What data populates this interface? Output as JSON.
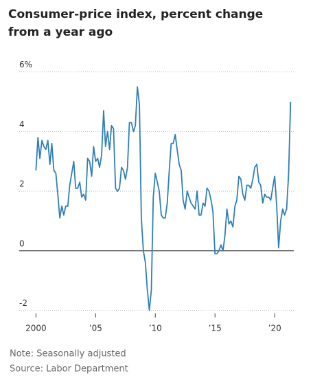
{
  "chart_data": {
    "type": "line",
    "title": "Consumer-price index, percent change from a year ago",
    "note": "Note: Seasonally adjusted",
    "source": "Source: Labor Department",
    "color": "#2f7fb8",
    "x": [
      2000,
      2000.17,
      2000.33,
      2000.5,
      2000.67,
      2000.83,
      2001,
      2001.17,
      2001.33,
      2001.5,
      2001.67,
      2001.83,
      2002,
      2002.17,
      2002.33,
      2002.5,
      2002.67,
      2002.83,
      2003,
      2003.17,
      2003.33,
      2003.5,
      2003.67,
      2003.83,
      2004,
      2004.17,
      2004.33,
      2004.5,
      2004.67,
      2004.83,
      2005,
      2005.17,
      2005.33,
      2005.5,
      2005.67,
      2005.83,
      2006,
      2006.17,
      2006.33,
      2006.5,
      2006.67,
      2006.83,
      2007,
      2007.17,
      2007.33,
      2007.5,
      2007.67,
      2007.83,
      2008,
      2008.17,
      2008.33,
      2008.5,
      2008.67,
      2008.83,
      2009,
      2009.17,
      2009.33,
      2009.5,
      2009.67,
      2009.83,
      2010,
      2010.17,
      2010.33,
      2010.5,
      2010.67,
      2010.83,
      2011,
      2011.17,
      2011.33,
      2011.5,
      2011.67,
      2011.83,
      2012,
      2012.17,
      2012.33,
      2012.5,
      2012.67,
      2012.83,
      2013,
      2013.17,
      2013.33,
      2013.5,
      2013.67,
      2013.83,
      2014,
      2014.17,
      2014.33,
      2014.5,
      2014.67,
      2014.83,
      2015,
      2015.17,
      2015.33,
      2015.5,
      2015.67,
      2015.83,
      2016,
      2016.17,
      2016.33,
      2016.5,
      2016.67,
      2016.83,
      2017,
      2017.17,
      2017.33,
      2017.5,
      2017.67,
      2017.83,
      2018,
      2018.17,
      2018.33,
      2018.5,
      2018.67,
      2018.83,
      2019,
      2019.17,
      2019.33,
      2019.5,
      2019.67,
      2019.83,
      2020,
      2020.17,
      2020.33,
      2020.5,
      2020.67,
      2020.83,
      2021,
      2021.17,
      2021.33
    ],
    "values": [
      2.7,
      3.8,
      3.1,
      3.7,
      3.5,
      3.4,
      3.7,
      2.9,
      3.6,
      2.7,
      2.6,
      1.9,
      1.1,
      1.5,
      1.2,
      1.5,
      1.5,
      2.2,
      2.6,
      3.0,
      2.1,
      2.1,
      2.3,
      1.8,
      1.9,
      1.7,
      3.1,
      3.0,
      2.5,
      3.5,
      3.0,
      3.1,
      2.8,
      3.2,
      4.7,
      3.5,
      4.0,
      3.4,
      4.2,
      4.1,
      2.1,
      2.0,
      2.1,
      2.8,
      2.7,
      2.4,
      2.8,
      4.3,
      4.3,
      4.0,
      4.2,
      5.5,
      4.9,
      1.1,
      0.0,
      -0.4,
      -1.3,
      -2.0,
      -1.3,
      1.8,
      2.6,
      2.3,
      2.0,
      1.2,
      1.1,
      1.1,
      1.6,
      2.7,
      3.6,
      3.6,
      3.9,
      3.4,
      2.9,
      2.7,
      1.7,
      1.4,
      2.0,
      1.8,
      1.6,
      1.5,
      1.4,
      2.0,
      1.2,
      1.2,
      1.6,
      1.5,
      2.1,
      2.0,
      1.7,
      1.3,
      -0.1,
      -0.1,
      0.0,
      0.2,
      0.0,
      0.5,
      1.4,
      0.9,
      1.0,
      0.8,
      1.5,
      1.7,
      2.5,
      2.4,
      1.9,
      1.7,
      2.2,
      2.2,
      2.1,
      2.4,
      2.8,
      2.9,
      2.3,
      2.2,
      1.6,
      1.9,
      1.8,
      1.8,
      1.7,
      2.1,
      2.5,
      1.5,
      0.1,
      1.0,
      1.4,
      1.2,
      1.4,
      2.6,
      5.0
    ],
    "xlim": [
      1998.6,
      2021.6
    ],
    "xticks": [
      {
        "value": 2000,
        "label": "2000"
      },
      {
        "value": 2005,
        "label": "’05"
      },
      {
        "value": 2010,
        "label": "’10"
      },
      {
        "value": 2015,
        "label": "’15"
      },
      {
        "value": 2020,
        "label": "’20"
      }
    ],
    "ylim": [
      -2.1,
      6.2
    ],
    "yticks": [
      {
        "value": 6,
        "label": "6%"
      },
      4,
      2,
      0,
      -2
    ],
    "grid": true
  }
}
